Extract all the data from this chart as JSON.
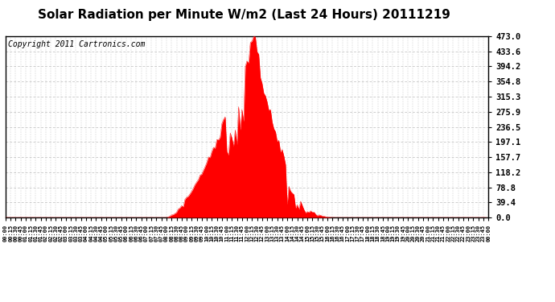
{
  "title": "Solar Radiation per Minute W/m2 (Last 24 Hours) 20111219",
  "copyright_text": "Copyright 2011 Cartronics.com",
  "y_ticks": [
    0.0,
    39.4,
    78.8,
    118.2,
    157.7,
    197.1,
    236.5,
    275.9,
    315.3,
    354.8,
    394.2,
    433.6,
    473.0
  ],
  "y_max": 473.0,
  "y_min": 0.0,
  "fill_color": "#FF0000",
  "line_color": "#FF0000",
  "baseline_dash_color": "#FF0000",
  "grid_color": "#BBBBBB",
  "background_color": "#FFFFFF",
  "title_fontsize": 11,
  "copyright_fontsize": 7,
  "sunrise_min": 480,
  "sunset_min": 990,
  "peak_min": 742,
  "peak_val": 473.0,
  "n_points": 288
}
